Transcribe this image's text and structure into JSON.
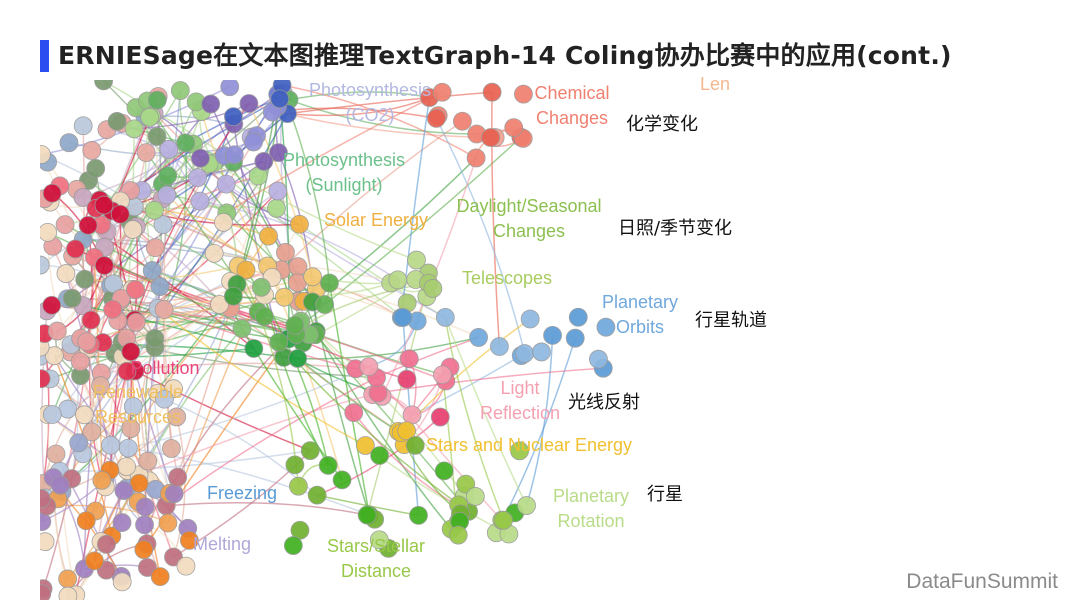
{
  "title": "ERNIESage在文本图推理TextGraph-14 Coling协办比赛中的应用(cont.)",
  "accent_color": "#2a4ef0",
  "graph_labels": [
    {
      "id": "photosynthesis-co2",
      "lines": [
        "Photosynthesis",
        "(CO2)"
      ],
      "color": "#b3b8e0"
    },
    {
      "id": "chemical-changes",
      "lines": [
        "Chemical",
        "Changes"
      ],
      "color": "#f08070"
    },
    {
      "id": "lens-partial",
      "lines": [
        "Len"
      ],
      "color": "#f4b890"
    },
    {
      "id": "photosynthesis-sunlight",
      "lines": [
        "Photosynthesis",
        "(Sunlight)"
      ],
      "color": "#6cc08a"
    },
    {
      "id": "solar-energy",
      "lines": [
        "Solar Energy"
      ],
      "color": "#f0b040"
    },
    {
      "id": "daylight-seasonal-changes",
      "lines": [
        "Daylight/Seasonal",
        "Changes"
      ],
      "color": "#8cc050"
    },
    {
      "id": "telescopes",
      "lines": [
        "Telescopes"
      ],
      "color": "#a8cc60"
    },
    {
      "id": "planetary-orbits",
      "lines": [
        "Planetary",
        "Orbits"
      ],
      "color": "#6fa8dc"
    },
    {
      "id": "pollution",
      "lines": [
        "Pollution"
      ],
      "color": "#e8457a"
    },
    {
      "id": "renewable-resources",
      "lines": [
        "Renewable",
        "Resources"
      ],
      "color": "#f0c060"
    },
    {
      "id": "light-reflection",
      "lines": [
        "Light",
        "Reflection"
      ],
      "color": "#f4a0b0"
    },
    {
      "id": "stars-nuclear-energy",
      "lines": [
        "Stars and Nuclear Energy"
      ],
      "color": "#f0c030"
    },
    {
      "id": "freezing",
      "lines": [
        "Freezing"
      ],
      "color": "#5b9bd5"
    },
    {
      "id": "planetary-rotation",
      "lines": [
        "Planetary",
        "Rotation"
      ],
      "color": "#b8dc88"
    },
    {
      "id": "melting",
      "lines": [
        "Melting"
      ],
      "color": "#b0a8d8"
    },
    {
      "id": "stars-stellar-distance",
      "lines": [
        "Stars/Stellar",
        "Distance"
      ],
      "color": "#98c848"
    }
  ],
  "annotations": {
    "chemical_changes": "化学变化",
    "daylight_seasonal": "日照/季节变化",
    "planetary_orbits": "行星轨道",
    "light_reflection": "光线反射",
    "planets": "行星"
  },
  "footer": "DataFunSummit"
}
